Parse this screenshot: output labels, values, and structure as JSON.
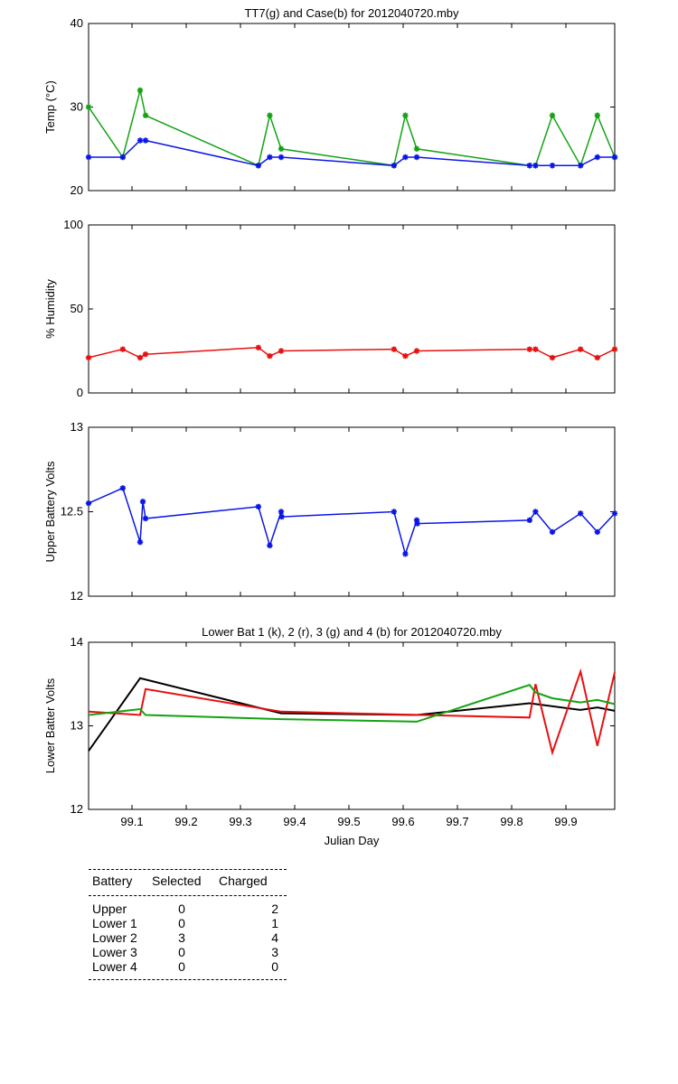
{
  "colors": {
    "green": "#13a313",
    "blue": "#0a16e6",
    "red": "#e81010",
    "black": "#000000"
  },
  "chart_data": [
    {
      "type": "line",
      "title": "TT7(g) and Case(b) for 2012040720.mby",
      "xlabel": "",
      "ylabel": "Temp  (°C)",
      "xlim": [
        99.02,
        99.99
      ],
      "ylim": [
        20,
        40
      ],
      "yticks": [
        20,
        30,
        40
      ],
      "ytick_labels": [
        "20",
        "30",
        "40"
      ],
      "series": [
        {
          "name": "TT7",
          "color_key": "green",
          "marker": "star",
          "x": [
            99.02,
            99.083,
            99.115,
            99.125,
            99.333,
            99.354,
            99.375,
            99.583,
            99.604,
            99.625,
            99.833,
            99.844,
            99.875,
            99.927,
            99.958,
            99.99
          ],
          "y": [
            30,
            24,
            32,
            29,
            23,
            29,
            25,
            23,
            29,
            25,
            23,
            23,
            29,
            23,
            29,
            24
          ]
        },
        {
          "name": "Case",
          "color_key": "blue",
          "marker": "star",
          "x": [
            99.02,
            99.083,
            99.115,
            99.125,
            99.333,
            99.354,
            99.375,
            99.583,
            99.604,
            99.625,
            99.833,
            99.844,
            99.875,
            99.927,
            99.958,
            99.99
          ],
          "y": [
            24,
            24,
            26,
            26,
            23,
            24,
            24,
            23,
            24,
            24,
            23,
            23,
            23,
            23,
            24,
            24
          ]
        }
      ]
    },
    {
      "type": "line",
      "title": "",
      "xlabel": "",
      "ylabel": "% Humidity",
      "xlim": [
        99.02,
        99.99
      ],
      "ylim": [
        0,
        100
      ],
      "yticks": [
        0,
        50,
        100
      ],
      "ytick_labels": [
        "0",
        "50",
        "100"
      ],
      "series": [
        {
          "name": "Humidity",
          "color_key": "red",
          "marker": "star",
          "x": [
            99.02,
            99.083,
            99.115,
            99.125,
            99.333,
            99.354,
            99.375,
            99.583,
            99.604,
            99.625,
            99.833,
            99.844,
            99.875,
            99.927,
            99.958,
            99.99
          ],
          "y": [
            21,
            26,
            21,
            23,
            27,
            22,
            25,
            26,
            22,
            25,
            26,
            26,
            21,
            26,
            21,
            26
          ]
        }
      ]
    },
    {
      "type": "line",
      "title": "",
      "xlabel": "",
      "ylabel": "Upper Battery Volts",
      "xlim": [
        99.02,
        99.99
      ],
      "ylim": [
        12,
        13
      ],
      "yticks": [
        12,
        12.5,
        13
      ],
      "ytick_labels": [
        "12",
        "12.5",
        "13"
      ],
      "series": [
        {
          "name": "Upper",
          "color_key": "blue",
          "marker": "star",
          "x": [
            99.02,
            99.083,
            99.115,
            99.12,
            99.125,
            99.333,
            99.354,
            99.375,
            99.376,
            99.583,
            99.604,
            99.625,
            99.626,
            99.833,
            99.844,
            99.875,
            99.927,
            99.958,
            99.99
          ],
          "y": [
            12.55,
            12.64,
            12.32,
            12.56,
            12.46,
            12.53,
            12.3,
            12.5,
            12.47,
            12.5,
            12.25,
            12.45,
            12.43,
            12.45,
            12.5,
            12.38,
            12.49,
            12.38,
            12.49
          ]
        }
      ]
    },
    {
      "type": "line",
      "title": "Lower Bat 1 (k), 2 (r), 3 (g) and 4 (b) for 2012040720.mby",
      "xlabel": "Julian Day",
      "ylabel": "Lower Batter Volts",
      "xlim": [
        99.02,
        99.99
      ],
      "ylim": [
        12,
        14
      ],
      "yticks": [
        12,
        13,
        14
      ],
      "ytick_labels": [
        "12",
        "13",
        "14"
      ],
      "xticks": [
        99.1,
        99.2,
        99.3,
        99.4,
        99.5,
        99.6,
        99.7,
        99.8,
        99.9
      ],
      "xtick_labels": [
        "99.1",
        "99.2",
        "99.3",
        "99.4",
        "99.5",
        "99.6",
        "99.7",
        "99.8",
        "99.9"
      ],
      "series": [
        {
          "name": "Lower 1",
          "color_key": "black",
          "marker": "none",
          "x": [
            99.02,
            99.115,
            99.375,
            99.625,
            99.833,
            99.927,
            99.958,
            99.99
          ],
          "y": [
            12.7,
            13.57,
            13.15,
            13.13,
            13.27,
            13.19,
            13.22,
            13.18
          ]
        },
        {
          "name": "Lower 2",
          "color_key": "red",
          "marker": "none",
          "x": [
            99.02,
            99.115,
            99.125,
            99.375,
            99.833,
            99.844,
            99.875,
            99.927,
            99.958,
            99.99
          ],
          "y": [
            13.17,
            13.13,
            13.44,
            13.17,
            13.1,
            13.5,
            12.68,
            13.65,
            12.76,
            13.64
          ]
        },
        {
          "name": "Lower 3",
          "color_key": "green",
          "marker": "none",
          "x": [
            99.02,
            99.115,
            99.125,
            99.375,
            99.625,
            99.833,
            99.844,
            99.875,
            99.927,
            99.958,
            99.99
          ],
          "y": [
            13.13,
            13.2,
            13.13,
            13.08,
            13.05,
            13.49,
            13.4,
            13.33,
            13.28,
            13.31,
            13.26
          ]
        }
      ]
    }
  ],
  "battery_table": {
    "headers": {
      "battery": "Battery",
      "selected": "Selected",
      "charged": "Charged"
    },
    "rows": [
      {
        "battery": "Upper",
        "selected": "0",
        "charged": "2"
      },
      {
        "battery": "Lower 1",
        "selected": "0",
        "charged": "1"
      },
      {
        "battery": "Lower 2",
        "selected": "3",
        "charged": "4"
      },
      {
        "battery": "Lower 3",
        "selected": "0",
        "charged": "3"
      },
      {
        "battery": "Lower 4",
        "selected": "0",
        "charged": "0"
      }
    ]
  }
}
